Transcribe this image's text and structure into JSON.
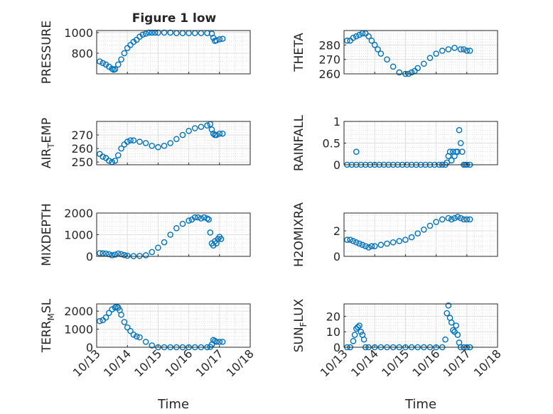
{
  "figure_title": "Figure 1 low",
  "chart_data": [
    {
      "type": "scatter",
      "ylabel": "PRESSURE",
      "ylim": [
        600,
        1020
      ],
      "yticks": [
        800,
        1000
      ],
      "xlim": [
        0,
        5
      ],
      "xticks": [],
      "show_xtick_labels": false,
      "x": [
        0.1,
        0.2,
        0.3,
        0.4,
        0.5,
        0.55,
        0.6,
        0.7,
        0.8,
        0.9,
        1.0,
        1.1,
        1.2,
        1.3,
        1.4,
        1.5,
        1.6,
        1.7,
        1.8,
        1.9,
        2.0,
        2.2,
        2.4,
        2.6,
        2.8,
        3.0,
        3.2,
        3.4,
        3.6,
        3.75,
        3.8,
        3.85,
        3.9,
        4.0,
        4.1
      ],
      "y": [
        720,
        705,
        690,
        670,
        650,
        640,
        645,
        690,
        740,
        800,
        850,
        880,
        910,
        930,
        960,
        980,
        990,
        1000,
        1000,
        1000,
        1000,
        1000,
        1000,
        995,
        995,
        995,
        995,
        995,
        995,
        990,
        950,
        920,
        925,
        935,
        940
      ]
    },
    {
      "type": "scatter",
      "ylabel": "THETA",
      "ylim": [
        260,
        290
      ],
      "yticks": [
        260,
        270,
        280
      ],
      "xlim": [
        0,
        5
      ],
      "xticks": [],
      "show_xtick_labels": false,
      "x": [
        0.1,
        0.2,
        0.3,
        0.4,
        0.5,
        0.6,
        0.7,
        0.8,
        0.9,
        1.0,
        1.1,
        1.2,
        1.4,
        1.6,
        1.8,
        2.0,
        2.1,
        2.2,
        2.3,
        2.4,
        2.6,
        2.8,
        3.0,
        3.2,
        3.4,
        3.6,
        3.8,
        3.9,
        4.0,
        4.1
      ],
      "y": [
        283,
        283,
        285,
        286,
        287,
        288,
        288,
        286,
        283,
        280,
        277,
        274,
        270,
        265,
        261,
        260,
        260,
        261,
        262,
        264,
        267,
        271,
        274,
        276,
        277,
        278,
        277,
        277,
        276,
        276
      ]
    },
    {
      "type": "scatter",
      "ylabel": "AIR_TEMP",
      "ylim": [
        248,
        280
      ],
      "yticks": [
        250,
        260,
        270
      ],
      "xlim": [
        0,
        5
      ],
      "xticks": [],
      "show_xtick_labels": false,
      "x": [
        0.1,
        0.2,
        0.3,
        0.4,
        0.5,
        0.6,
        0.7,
        0.8,
        0.9,
        1.0,
        1.1,
        1.2,
        1.4,
        1.6,
        1.8,
        2.0,
        2.2,
        2.4,
        2.6,
        2.8,
        3.0,
        3.2,
        3.4,
        3.6,
        3.7,
        3.75,
        3.8,
        3.85,
        3.9,
        4.0,
        4.1
      ],
      "y": [
        256,
        254,
        253,
        251,
        250,
        251,
        255,
        260,
        263,
        265,
        266,
        266,
        265,
        264,
        262,
        261,
        262,
        264,
        267,
        270,
        273,
        275,
        276,
        277,
        278,
        274,
        271,
        270,
        270,
        271,
        271
      ]
    },
    {
      "type": "scatter",
      "ylabel": "RAINFALL",
      "ylim": [
        0,
        1
      ],
      "yticks": [
        0,
        0.5,
        1
      ],
      "xlim": [
        0,
        5
      ],
      "xticks": [],
      "show_xtick_labels": false,
      "x": [
        0.1,
        0.25,
        0.4,
        0.55,
        0.7,
        0.85,
        1.0,
        1.15,
        1.3,
        1.45,
        1.6,
        1.75,
        1.9,
        2.05,
        2.2,
        2.35,
        2.5,
        2.65,
        2.8,
        2.95,
        3.1,
        3.2,
        3.3,
        3.35,
        3.4,
        3.45,
        3.5,
        3.55,
        3.6,
        3.65,
        3.7,
        3.75,
        3.8,
        3.85,
        3.9,
        3.95,
        4.0,
        4.1,
        0.4
      ],
      "y": [
        0,
        0,
        0,
        0,
        0,
        0,
        0,
        0,
        0,
        0,
        0,
        0,
        0,
        0,
        0,
        0,
        0,
        0,
        0,
        0,
        0,
        0,
        0,
        0.05,
        0.2,
        0.3,
        0.1,
        0.3,
        0.2,
        0.3,
        0.3,
        0.8,
        0.5,
        0.3,
        0,
        0,
        0,
        0,
        0.3
      ]
    },
    {
      "type": "scatter",
      "ylabel": "MIXDEPTH",
      "ylim": [
        0,
        2000
      ],
      "yticks": [
        0,
        1000,
        2000
      ],
      "xlim": [
        0,
        5
      ],
      "xticks": [],
      "show_xtick_labels": false,
      "x": [
        0.1,
        0.2,
        0.3,
        0.4,
        0.5,
        0.6,
        0.7,
        0.8,
        0.9,
        1.0,
        1.2,
        1.4,
        1.6,
        1.8,
        2.0,
        2.2,
        2.4,
        2.6,
        2.8,
        3.0,
        3.1,
        3.2,
        3.3,
        3.4,
        3.5,
        3.6,
        3.65,
        3.7,
        3.75,
        3.8,
        3.85,
        3.9,
        3.95,
        4.0,
        4.05
      ],
      "y": [
        150,
        140,
        130,
        100,
        50,
        80,
        130,
        100,
        60,
        30,
        10,
        20,
        50,
        200,
        400,
        650,
        1000,
        1300,
        1500,
        1650,
        1700,
        1800,
        1800,
        1750,
        1800,
        1750,
        1700,
        1100,
        600,
        500,
        700,
        600,
        800,
        900,
        800
      ]
    },
    {
      "type": "scatter",
      "ylabel": "H2OMIXRA",
      "ylim": [
        0,
        3.4
      ],
      "yticks": [
        0,
        2
      ],
      "xlim": [
        0,
        5
      ],
      "xticks": [],
      "show_xtick_labels": false,
      "x": [
        0.1,
        0.2,
        0.3,
        0.4,
        0.5,
        0.6,
        0.7,
        0.8,
        0.9,
        1.0,
        1.2,
        1.4,
        1.6,
        1.8,
        2.0,
        2.2,
        2.4,
        2.6,
        2.8,
        3.0,
        3.2,
        3.4,
        3.5,
        3.6,
        3.7,
        3.8,
        3.9,
        4.0,
        4.1
      ],
      "y": [
        1.3,
        1.3,
        1.2,
        1.1,
        1.0,
        0.9,
        0.8,
        0.7,
        0.8,
        0.8,
        0.9,
        1.0,
        1.1,
        1.2,
        1.3,
        1.5,
        1.8,
        2.1,
        2.4,
        2.7,
        2.9,
        3.0,
        2.9,
        3.0,
        3.1,
        3.0,
        2.9,
        2.9,
        2.9
      ]
    },
    {
      "type": "scatter",
      "ylabel": "TERR_MSL",
      "ylim": [
        0,
        2400
      ],
      "yticks": [
        0,
        1000,
        2000
      ],
      "xlim": [
        0,
        5
      ],
      "xticks": [
        0,
        1,
        2,
        3,
        4,
        5
      ],
      "xtick_labels": [
        "10/13",
        "10/14",
        "10/15",
        "10/16",
        "10/17",
        "10/18"
      ],
      "xlabel": "Time",
      "show_xtick_labels": true,
      "x": [
        0.1,
        0.2,
        0.3,
        0.4,
        0.5,
        0.6,
        0.65,
        0.7,
        0.75,
        0.8,
        0.9,
        1.0,
        1.1,
        1.2,
        1.3,
        1.4,
        1.6,
        1.8,
        2.0,
        2.2,
        2.4,
        2.6,
        2.8,
        3.0,
        3.2,
        3.4,
        3.6,
        3.7,
        3.75,
        3.8,
        3.85,
        3.9,
        4.0,
        4.1
      ],
      "y": [
        1450,
        1500,
        1650,
        1900,
        2100,
        2200,
        2250,
        2200,
        2050,
        1800,
        1400,
        1100,
        900,
        700,
        600,
        550,
        300,
        100,
        0,
        0,
        0,
        0,
        0,
        0,
        0,
        0,
        0,
        20,
        150,
        400,
        350,
        300,
        300,
        300
      ]
    },
    {
      "type": "scatter",
      "ylabel": "SUN_FLUX",
      "ylim": [
        0,
        28
      ],
      "yticks": [
        0,
        10,
        20
      ],
      "xlim": [
        0,
        5
      ],
      "xticks": [
        0,
        1,
        2,
        3,
        4,
        5
      ],
      "xtick_labels": [
        "10/13",
        "10/14",
        "10/15",
        "10/16",
        "10/17",
        "10/18"
      ],
      "xlabel": "Time",
      "show_xtick_labels": true,
      "x": [
        0.1,
        0.2,
        0.3,
        0.35,
        0.4,
        0.45,
        0.5,
        0.55,
        0.6,
        0.65,
        0.7,
        0.8,
        1.0,
        1.2,
        1.4,
        1.6,
        1.8,
        2.0,
        2.2,
        2.4,
        2.6,
        2.8,
        3.0,
        3.2,
        3.3,
        3.35,
        3.4,
        3.45,
        3.5,
        3.55,
        3.6,
        3.65,
        3.7,
        3.75,
        3.8,
        3.9,
        4.0,
        4.1
      ],
      "y": [
        0,
        0,
        4,
        8,
        12,
        13,
        14,
        10,
        8,
        5,
        0,
        0,
        0,
        0,
        0,
        0,
        0,
        0,
        0,
        0,
        0,
        0,
        0,
        0,
        5,
        22,
        27,
        19,
        16,
        11,
        10,
        14,
        8,
        3,
        0,
        0,
        0,
        0
      ]
    }
  ]
}
